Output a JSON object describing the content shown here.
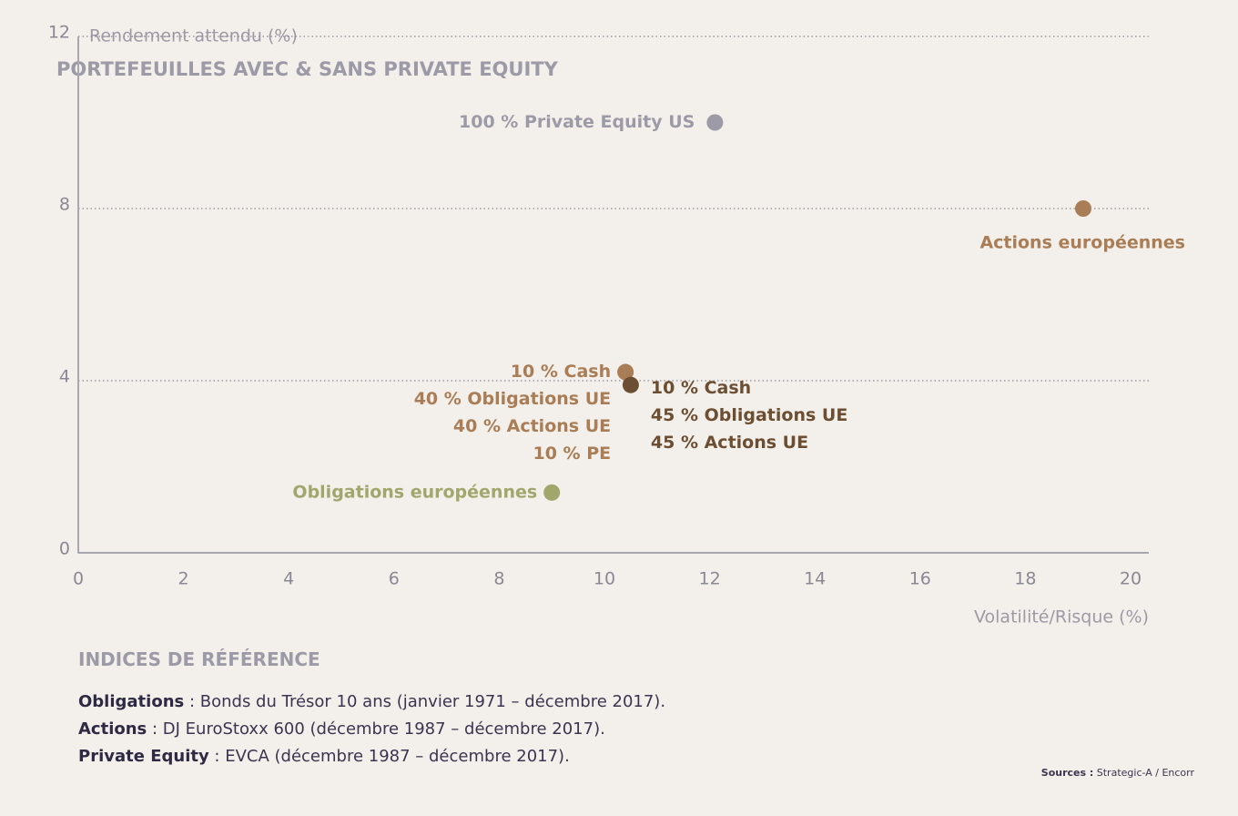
{
  "chart_data": {
    "type": "scatter",
    "title": "PORTEFEUILLES AVEC & SANS PRIVATE EQUITY",
    "y_label": "Rendement attendu (%)",
    "x_label": "Volatilité/Risque (%)",
    "xlim": [
      0,
      20
    ],
    "xticks": [
      0,
      2,
      4,
      6,
      8,
      10,
      12,
      14,
      16,
      18,
      20
    ],
    "ylim": [
      0,
      12
    ],
    "yticks": [
      0,
      4,
      8,
      12
    ],
    "grid": true,
    "points": [
      {
        "label": [
          "100 % Private Equity US"
        ],
        "color": "#9b9aa6",
        "x": 12.1,
        "y": 10.0
      },
      {
        "label": [
          "Actions européennes"
        ],
        "color": "#a97d55",
        "x": 19.1,
        "y": 8.0
      },
      {
        "label": [
          "10 % Cash",
          "40 % Obligations UE",
          "40 % Actions UE",
          "10 % PE"
        ],
        "color": "#a97d55",
        "x": 10.4,
        "y": 4.2
      },
      {
        "label": [
          "10 % Cash",
          "45 % Obligations UE",
          "45 % Actions UE"
        ],
        "color": "#6c4f33",
        "x": 10.5,
        "y": 3.9
      },
      {
        "label": [
          "Obligations européennes"
        ],
        "color": "#a1a66c",
        "x": 9.0,
        "y": 1.4
      }
    ]
  },
  "notes": {
    "heading": "INDICES DE RÉFÉRENCE",
    "lines": [
      {
        "term": "Obligations",
        "text": " : Bonds du Trésor 10 ans (janvier 1971 – décembre 2017)."
      },
      {
        "term": "Actions",
        "text": " : DJ EuroStoxx 600 (décembre 1987 – décembre 2017)."
      },
      {
        "term": "Private Equity",
        "text": " : EVCA (décembre 1987 – décembre 2017)."
      }
    ],
    "sources_term": "Sources :",
    "sources_text": " Strategic-A / Encorr"
  }
}
